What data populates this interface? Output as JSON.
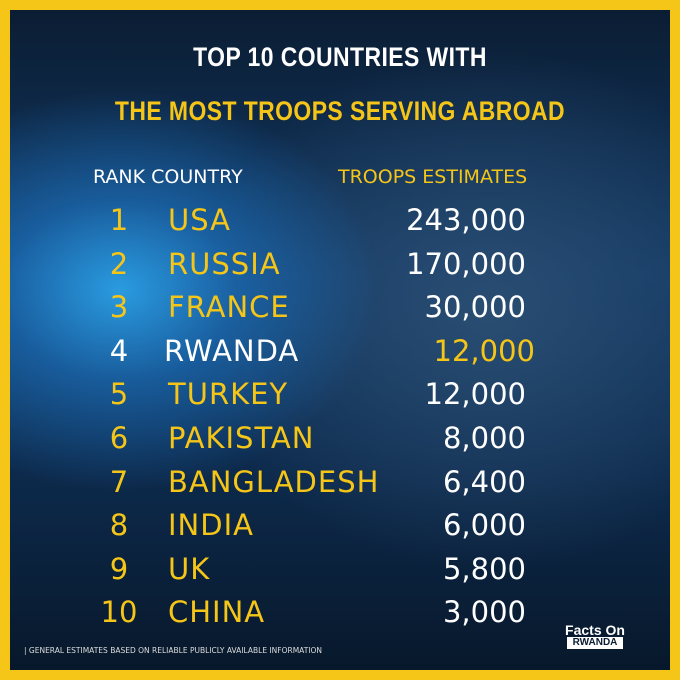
{
  "header": {
    "title_line1": "TOP 10 COUNTRIES WITH",
    "title_line2": "THE MOST TROOPS SERVING ABROAD"
  },
  "table": {
    "columns": [
      "RANK COUNTRY",
      "TROOPS ESTIMATES"
    ],
    "rows": [
      [
        "1",
        "USA",
        "243,000"
      ],
      [
        "2",
        "RUSSIA",
        "170,000"
      ],
      [
        "3",
        "FRANCE",
        "30,000"
      ],
      [
        "4",
        "RWANDA",
        "12,000"
      ],
      [
        "5",
        "TURKEY",
        "12,000"
      ],
      [
        "6",
        "PAKISTAN",
        "8,000"
      ],
      [
        "7",
        "BANGLADESH",
        "6,400"
      ],
      [
        "8",
        "INDIA",
        "6,000"
      ],
      [
        "9",
        "UK",
        "5,800"
      ],
      [
        "10",
        "CHINA",
        "3,000"
      ]
    ]
  },
  "footer": {
    "note": "| GENERAL ESTIMATES BASED ON RELIABLE PUBLICLY AVAILABLE INFORMATION",
    "logo_line1": "Facts On",
    "logo_line2": "RWANDA"
  }
}
